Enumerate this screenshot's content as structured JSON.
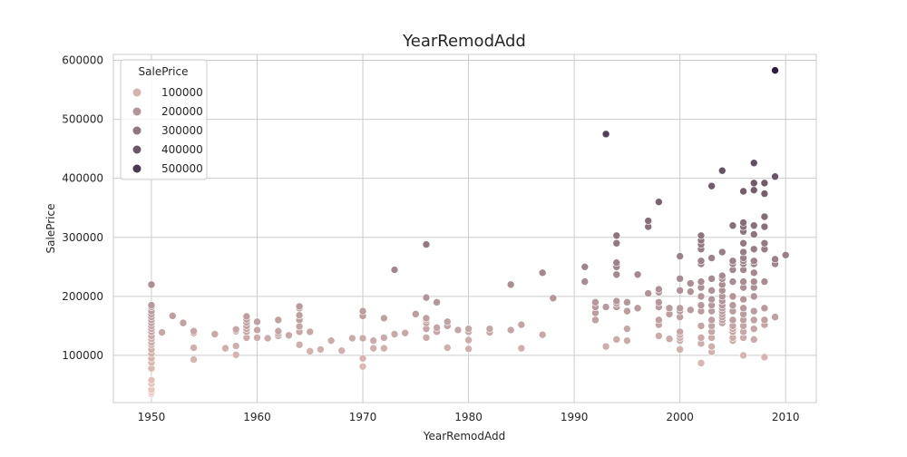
{
  "chart_data": {
    "type": "scatter",
    "title": "YearRemodAdd",
    "xlabel": "YearRemodAdd",
    "ylabel": "SalePrice",
    "xlim": [
      1946.4,
      2012.9
    ],
    "ylim": [
      20000,
      610000
    ],
    "xticks": [
      1950,
      1960,
      1970,
      1980,
      1990,
      2000,
      2010
    ],
    "yticks": [
      100000,
      200000,
      300000,
      400000,
      500000,
      600000
    ],
    "grid": true,
    "legend": {
      "title": "SalePrice",
      "placement": "top-left",
      "entries": [
        {
          "label": "100000",
          "value": 100000
        },
        {
          "label": "200000",
          "value": 200000
        },
        {
          "label": "300000",
          "value": 300000
        },
        {
          "label": "400000",
          "value": 400000
        },
        {
          "label": "500000",
          "value": 500000
        }
      ]
    },
    "hue": {
      "min": 35000,
      "max": 582933,
      "color_light": "#ebc8be",
      "color_dark": "#2d1e3e"
    },
    "points": [
      [
        1950,
        35000
      ],
      [
        1950,
        38000
      ],
      [
        1950,
        42000
      ],
      [
        1950,
        52000
      ],
      [
        1950,
        58000
      ],
      [
        1950,
        78000
      ],
      [
        1950,
        88000
      ],
      [
        1950,
        95000
      ],
      [
        1950,
        103000
      ],
      [
        1950,
        110000
      ],
      [
        1950,
        118000
      ],
      [
        1950,
        122000
      ],
      [
        1950,
        128000
      ],
      [
        1950,
        133000
      ],
      [
        1950,
        140000
      ],
      [
        1950,
        145000
      ],
      [
        1950,
        150000
      ],
      [
        1950,
        155000
      ],
      [
        1950,
        160000
      ],
      [
        1950,
        165000
      ],
      [
        1950,
        170000
      ],
      [
        1950,
        175000
      ],
      [
        1950,
        182000
      ],
      [
        1950,
        185000
      ],
      [
        1950,
        220000
      ],
      [
        1951,
        139000
      ],
      [
        1952,
        167000
      ],
      [
        1953,
        155000
      ],
      [
        1954,
        93000
      ],
      [
        1954,
        113000
      ],
      [
        1954,
        138000
      ],
      [
        1954,
        141000
      ],
      [
        1956,
        136000
      ],
      [
        1957,
        112000
      ],
      [
        1958,
        101000
      ],
      [
        1958,
        116000
      ],
      [
        1958,
        141000
      ],
      [
        1958,
        144000
      ],
      [
        1959,
        130000
      ],
      [
        1959,
        140000
      ],
      [
        1959,
        145000
      ],
      [
        1959,
        150000
      ],
      [
        1959,
        156000
      ],
      [
        1959,
        161000
      ],
      [
        1959,
        166000
      ],
      [
        1960,
        130000
      ],
      [
        1960,
        143000
      ],
      [
        1960,
        157000
      ],
      [
        1961,
        129000
      ],
      [
        1962,
        133000
      ],
      [
        1962,
        137000
      ],
      [
        1962,
        141000
      ],
      [
        1962,
        160000
      ],
      [
        1963,
        134000
      ],
      [
        1964,
        118000
      ],
      [
        1964,
        140000
      ],
      [
        1964,
        149000
      ],
      [
        1964,
        160000
      ],
      [
        1964,
        168000
      ],
      [
        1964,
        180000
      ],
      [
        1964,
        183000
      ],
      [
        1965,
        107000
      ],
      [
        1965,
        140000
      ],
      [
        1966,
        110000
      ],
      [
        1967,
        125000
      ],
      [
        1968,
        108000
      ],
      [
        1969,
        129000
      ],
      [
        1970,
        81000
      ],
      [
        1970,
        95000
      ],
      [
        1970,
        129000
      ],
      [
        1970,
        167000
      ],
      [
        1970,
        175000
      ],
      [
        1971,
        112000
      ],
      [
        1971,
        125000
      ],
      [
        1972,
        112000
      ],
      [
        1972,
        130000
      ],
      [
        1972,
        163000
      ],
      [
        1973,
        136000
      ],
      [
        1973,
        245000
      ],
      [
        1974,
        138000
      ],
      [
        1975,
        170000
      ],
      [
        1976,
        130000
      ],
      [
        1976,
        145000
      ],
      [
        1976,
        155000
      ],
      [
        1976,
        160000
      ],
      [
        1976,
        163000
      ],
      [
        1976,
        198000
      ],
      [
        1976,
        288000
      ],
      [
        1977,
        140000
      ],
      [
        1977,
        147000
      ],
      [
        1977,
        190000
      ],
      [
        1978,
        113000
      ],
      [
        1978,
        150000
      ],
      [
        1978,
        157000
      ],
      [
        1979,
        143000
      ],
      [
        1980,
        111000
      ],
      [
        1980,
        126000
      ],
      [
        1980,
        140000
      ],
      [
        1980,
        145000
      ],
      [
        1982,
        139000
      ],
      [
        1982,
        145000
      ],
      [
        1984,
        143000
      ],
      [
        1984,
        220000
      ],
      [
        1985,
        112000
      ],
      [
        1985,
        152000
      ],
      [
        1987,
        135000
      ],
      [
        1987,
        240000
      ],
      [
        1988,
        197000
      ],
      [
        1991,
        225000
      ],
      [
        1991,
        250000
      ],
      [
        1992,
        160000
      ],
      [
        1992,
        172000
      ],
      [
        1992,
        182000
      ],
      [
        1992,
        190000
      ],
      [
        1993,
        115000
      ],
      [
        1993,
        182000
      ],
      [
        1993,
        475000
      ],
      [
        1994,
        127000
      ],
      [
        1994,
        182000
      ],
      [
        1994,
        188000
      ],
      [
        1994,
        192000
      ],
      [
        1994,
        237000
      ],
      [
        1994,
        250000
      ],
      [
        1994,
        257000
      ],
      [
        1994,
        290000
      ],
      [
        1994,
        303000
      ],
      [
        1995,
        125000
      ],
      [
        1995,
        145000
      ],
      [
        1995,
        175000
      ],
      [
        1995,
        190000
      ],
      [
        1996,
        180000
      ],
      [
        1996,
        237000
      ],
      [
        1997,
        205000
      ],
      [
        1997,
        318000
      ],
      [
        1997,
        328000
      ],
      [
        1998,
        133000
      ],
      [
        1998,
        152000
      ],
      [
        1998,
        160000
      ],
      [
        1998,
        182000
      ],
      [
        1998,
        190000
      ],
      [
        1998,
        207000
      ],
      [
        1998,
        212000
      ],
      [
        1998,
        360000
      ],
      [
        1999,
        128000
      ],
      [
        1999,
        170000
      ],
      [
        1999,
        180000
      ],
      [
        2000,
        110000
      ],
      [
        2000,
        125000
      ],
      [
        2000,
        130000
      ],
      [
        2000,
        135000
      ],
      [
        2000,
        140000
      ],
      [
        2000,
        165000
      ],
      [
        2000,
        175000
      ],
      [
        2000,
        180000
      ],
      [
        2000,
        210000
      ],
      [
        2000,
        230000
      ],
      [
        2000,
        268000
      ],
      [
        2001,
        177000
      ],
      [
        2001,
        208000
      ],
      [
        2001,
        222000
      ],
      [
        2002,
        87000
      ],
      [
        2002,
        120000
      ],
      [
        2002,
        130000
      ],
      [
        2002,
        150000
      ],
      [
        2002,
        175000
      ],
      [
        2002,
        185000
      ],
      [
        2002,
        200000
      ],
      [
        2002,
        215000
      ],
      [
        2002,
        225000
      ],
      [
        2002,
        255000
      ],
      [
        2002,
        260000
      ],
      [
        2002,
        280000
      ],
      [
        2002,
        288000
      ],
      [
        2002,
        295000
      ],
      [
        2002,
        303000
      ],
      [
        2003,
        106000
      ],
      [
        2003,
        115000
      ],
      [
        2003,
        130000
      ],
      [
        2003,
        140000
      ],
      [
        2003,
        150000
      ],
      [
        2003,
        160000
      ],
      [
        2003,
        175000
      ],
      [
        2003,
        185000
      ],
      [
        2003,
        195000
      ],
      [
        2003,
        210000
      ],
      [
        2003,
        230000
      ],
      [
        2003,
        265000
      ],
      [
        2003,
        387000
      ],
      [
        2004,
        155000
      ],
      [
        2004,
        160000
      ],
      [
        2004,
        165000
      ],
      [
        2004,
        170000
      ],
      [
        2004,
        175000
      ],
      [
        2004,
        180000
      ],
      [
        2004,
        185000
      ],
      [
        2004,
        192000
      ],
      [
        2004,
        200000
      ],
      [
        2004,
        210000
      ],
      [
        2004,
        220000
      ],
      [
        2004,
        230000
      ],
      [
        2004,
        235000
      ],
      [
        2004,
        275000
      ],
      [
        2004,
        413000
      ],
      [
        2005,
        125000
      ],
      [
        2005,
        130000
      ],
      [
        2005,
        140000
      ],
      [
        2005,
        145000
      ],
      [
        2005,
        150000
      ],
      [
        2005,
        160000
      ],
      [
        2005,
        175000
      ],
      [
        2005,
        185000
      ],
      [
        2005,
        200000
      ],
      [
        2005,
        225000
      ],
      [
        2005,
        245000
      ],
      [
        2005,
        255000
      ],
      [
        2005,
        260000
      ],
      [
        2005,
        320000
      ],
      [
        2006,
        100000
      ],
      [
        2006,
        130000
      ],
      [
        2006,
        140000
      ],
      [
        2006,
        150000
      ],
      [
        2006,
        160000
      ],
      [
        2006,
        170000
      ],
      [
        2006,
        180000
      ],
      [
        2006,
        195000
      ],
      [
        2006,
        215000
      ],
      [
        2006,
        225000
      ],
      [
        2006,
        245000
      ],
      [
        2006,
        255000
      ],
      [
        2006,
        260000
      ],
      [
        2006,
        265000
      ],
      [
        2006,
        275000
      ],
      [
        2006,
        290000
      ],
      [
        2006,
        310000
      ],
      [
        2006,
        318000
      ],
      [
        2006,
        325000
      ],
      [
        2006,
        378000
      ],
      [
        2007,
        127000
      ],
      [
        2007,
        145000
      ],
      [
        2007,
        160000
      ],
      [
        2007,
        175000
      ],
      [
        2007,
        200000
      ],
      [
        2007,
        215000
      ],
      [
        2007,
        225000
      ],
      [
        2007,
        240000
      ],
      [
        2007,
        255000
      ],
      [
        2007,
        260000
      ],
      [
        2007,
        280000
      ],
      [
        2007,
        305000
      ],
      [
        2007,
        320000
      ],
      [
        2007,
        380000
      ],
      [
        2007,
        392000
      ],
      [
        2007,
        426000
      ],
      [
        2008,
        97000
      ],
      [
        2008,
        152000
      ],
      [
        2008,
        160000
      ],
      [
        2008,
        180000
      ],
      [
        2008,
        225000
      ],
      [
        2008,
        280000
      ],
      [
        2008,
        290000
      ],
      [
        2008,
        318000
      ],
      [
        2008,
        335000
      ],
      [
        2008,
        374000
      ],
      [
        2008,
        392000
      ],
      [
        2009,
        165000
      ],
      [
        2009,
        255000
      ],
      [
        2009,
        263000
      ],
      [
        2009,
        403000
      ],
      [
        2009,
        582933
      ],
      [
        2010,
        270000
      ]
    ]
  }
}
